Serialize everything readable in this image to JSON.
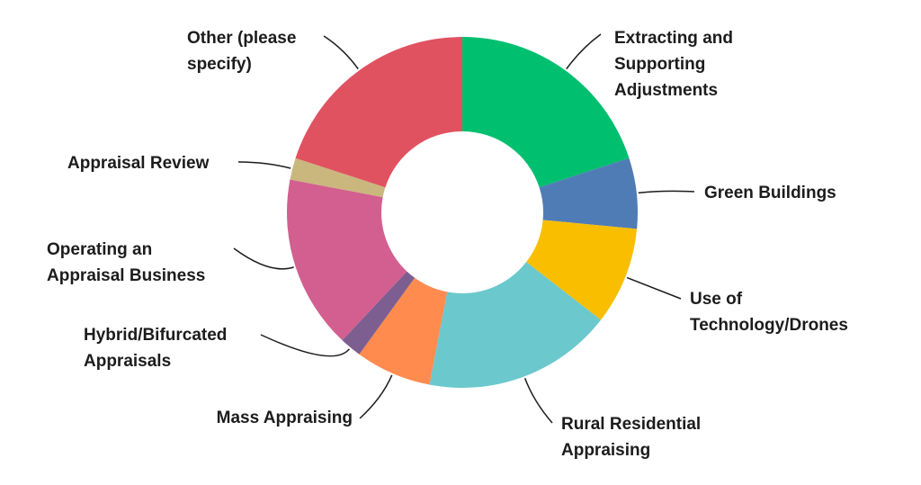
{
  "chart_data": {
    "type": "donut",
    "categories": [
      "Extracting and Supporting Adjustments",
      "Green Buildings",
      "Use of Technology/Drones",
      "Rural Residential Appraising",
      "Mass Appraising",
      "Hybrid/Bifurcated Appraisals",
      "Operating an Appraisal Business",
      "Appraisal Review",
      "Other (please specify)"
    ],
    "values": [
      20,
      6.5,
      9,
      17.5,
      7,
      2,
      16,
      2,
      20
    ],
    "colors": [
      "#00bf6f",
      "#507cb6",
      "#f9be00",
      "#6bc8cd",
      "#ff8b4f",
      "#7d5e90",
      "#d25f90",
      "#c9b77d",
      "#e05260"
    ]
  }
}
